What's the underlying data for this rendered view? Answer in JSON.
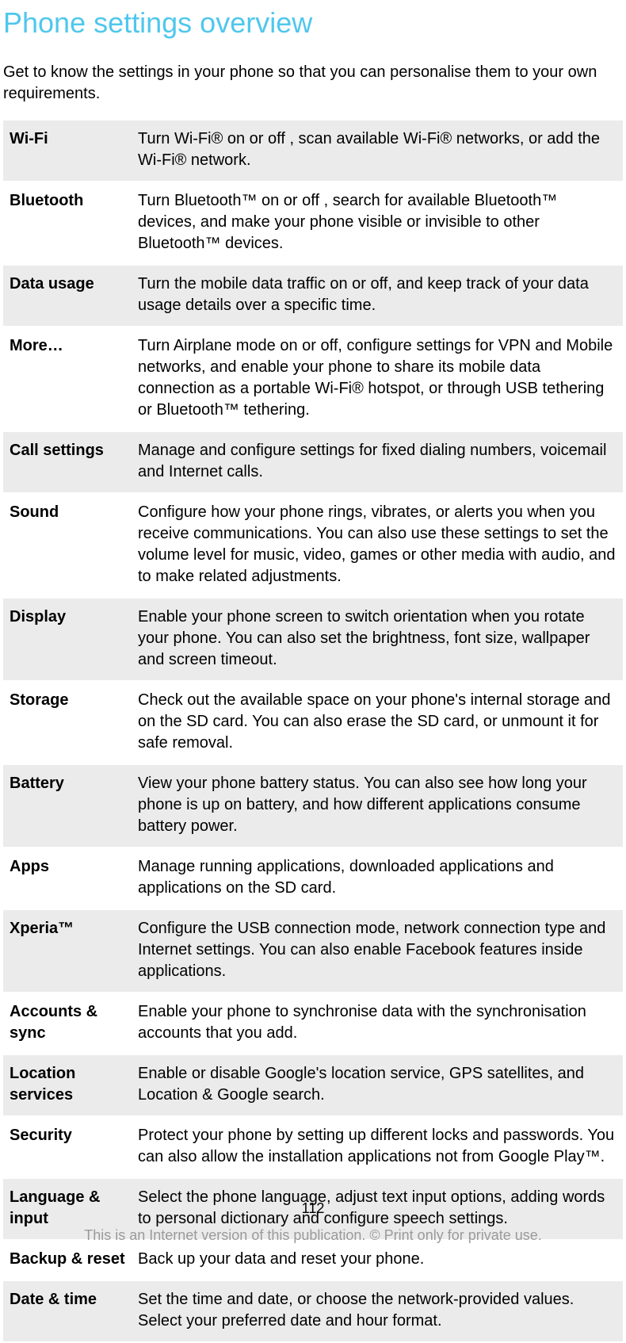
{
  "title": "Phone settings overview",
  "intro": "Get to know the settings in your phone so that you can personalise them to your own requirements.",
  "colors": {
    "title_color": "#4fc7ed",
    "text_color": "#000000",
    "shaded_bg": "#ebebeb",
    "plain_bg": "#ffffff",
    "footer_color": "#9a9a9a"
  },
  "typography": {
    "title_fontsize": 36,
    "body_fontsize": 20,
    "footer_fontsize": 18,
    "font_family": "Arial, Helvetica, sans-serif"
  },
  "table": {
    "column_name_width": 162,
    "row_shading": "alternate_starting_shaded",
    "rows": [
      {
        "name": "Wi-Fi",
        "desc": "Turn Wi-Fi® on or off , scan available Wi-Fi® networks, or add the Wi-Fi® network."
      },
      {
        "name": "Bluetooth",
        "desc": "Turn Bluetooth™ on or off , search for available Bluetooth™ devices, and make your phone visible or invisible to other Bluetooth™ devices."
      },
      {
        "name": "Data usage",
        "desc": "Turn the mobile data traffic on or off, and keep track of your data usage details over a specific time."
      },
      {
        "name": "More…",
        "desc": "Turn Airplane mode on or off, configure settings for VPN and Mobile networks, and enable your phone to share its mobile data connection as a portable Wi-Fi® hotspot, or through USB tethering or Bluetooth™ tethering."
      },
      {
        "name": "Call settings",
        "desc": "Manage and configure settings for fixed dialing numbers, voicemail and Internet calls."
      },
      {
        "name": "Sound",
        "desc": "Configure how your phone rings, vibrates, or alerts you when you receive communications. You can also use these settings to set the volume level for music, video, games or other media with audio, and to make related adjustments."
      },
      {
        "name": "Display",
        "desc": "Enable your phone screen to switch orientation when you rotate your phone. You can also set the brightness, font size, wallpaper and screen timeout."
      },
      {
        "name": "Storage",
        "desc": "Check out the available space on your phone's internal storage and on the SD card. You can also erase the SD card, or unmount it for safe removal."
      },
      {
        "name": "Battery",
        "desc": "View your phone battery status. You can also see how long your phone is up on battery, and how different applications consume battery power."
      },
      {
        "name": "Apps",
        "desc": "Manage running applications, downloaded applications and applications on the SD card."
      },
      {
        "name": "Xperia™",
        "desc": "Configure the USB connection mode, network connection type and Internet settings. You can also enable Facebook features inside applications."
      },
      {
        "name": "Accounts & sync",
        "desc": "Enable your phone to synchronise data with the synchronisation accounts that you add."
      },
      {
        "name": "Location services",
        "desc": "Enable or disable Google's location service, GPS satellites, and Location & Google search."
      },
      {
        "name": "Security",
        "desc": "Protect your phone by setting up different locks and passwords. You can also allow the installation applications not from Google Play™."
      },
      {
        "name": "Language & input",
        "desc": "Select the phone language, adjust text input options, adding words to personal dictionary and configure speech settings."
      },
      {
        "name": "Backup & reset",
        "desc": "Back up your data and reset your phone."
      },
      {
        "name": "Date & time",
        "desc": "Set the time and date, or choose the network-provided values. Select your preferred date and hour format."
      }
    ]
  },
  "page_number": "112",
  "footer": "This is an Internet version of this publication. © Print only for private use."
}
